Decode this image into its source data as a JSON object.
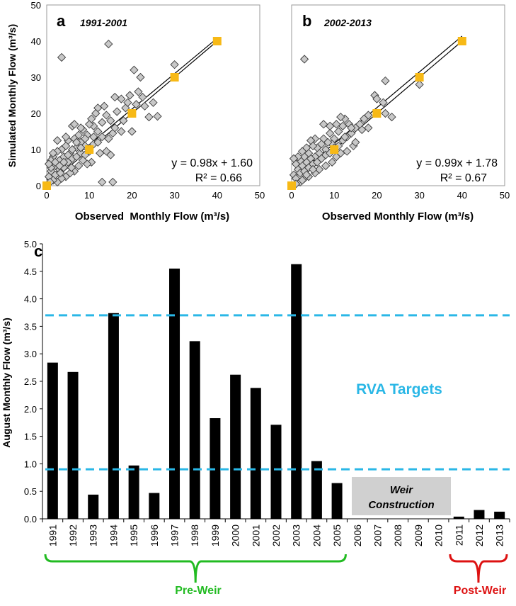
{
  "colors": {
    "diamond_fill": "#c8c8c8",
    "diamond_stroke": "#3a3a3a",
    "square_fill": "#f7b916",
    "bar_fill": "#000000",
    "rva_line": "#2ab7e6",
    "pre_weir": "#22bb22",
    "post_weir": "#dd1111",
    "weir_box": "#d0d0d0"
  },
  "scatter_common": {
    "xlabel": "Observed  Monthly Flow (m³/s)",
    "xlabel_b": "Observed Monthly Flow (m³/s)",
    "ylabel": "Simulated Monthly Flow (m³/s)",
    "ticks": [
      "0",
      "10",
      "20",
      "30",
      "40",
      "50"
    ]
  },
  "chart_data": [
    {
      "type": "scatter",
      "panel": "a",
      "title": "1991-2001",
      "xlim": [
        0,
        50
      ],
      "ylim": [
        0,
        50
      ],
      "equation": "y = 0.98x + 1.60",
      "r2": "R² = 0.66",
      "fit": {
        "slope": 0.98,
        "intercept": 1.6
      },
      "reference_squares": [
        [
          0,
          0
        ],
        [
          10,
          10
        ],
        [
          20,
          20
        ],
        [
          30,
          30
        ],
        [
          40,
          40
        ]
      ],
      "points": [
        [
          3.5,
          35.5
        ],
        [
          14.5,
          39.2
        ],
        [
          20.5,
          32.0
        ],
        [
          30.0,
          33.5
        ],
        [
          26.0,
          19.2
        ],
        [
          22.0,
          30.0
        ],
        [
          21.5,
          26.0
        ],
        [
          19.5,
          25.0
        ],
        [
          17.5,
          24.0
        ],
        [
          16.0,
          24.5
        ],
        [
          16.5,
          20.5
        ],
        [
          18.0,
          18.0
        ],
        [
          17.5,
          15.0
        ],
        [
          15.5,
          14.5
        ],
        [
          15.0,
          18.0
        ],
        [
          14.0,
          19.5
        ],
        [
          13.0,
          17.5
        ],
        [
          12.0,
          21.5
        ],
        [
          11.5,
          20.0
        ],
        [
          11.0,
          16.5
        ],
        [
          10.0,
          17.0
        ],
        [
          9.5,
          14.0
        ],
        [
          9.0,
          13.0
        ],
        [
          8.5,
          15.5
        ],
        [
          8.0,
          12.0
        ],
        [
          7.5,
          14.0
        ],
        [
          7.0,
          10.5
        ],
        [
          6.5,
          13.0
        ],
        [
          6.0,
          16.5
        ],
        [
          5.5,
          9.0
        ],
        [
          5.0,
          12.5
        ],
        [
          4.5,
          11.0
        ],
        [
          4.0,
          8.0
        ],
        [
          3.5,
          10.0
        ],
        [
          3.0,
          7.0
        ],
        [
          2.5,
          9.5
        ],
        [
          2.0,
          5.5
        ],
        [
          1.5,
          8.0
        ],
        [
          1.0,
          4.0
        ],
        [
          0.5,
          2.5
        ],
        [
          1.0,
          7.0
        ],
        [
          2.0,
          3.0
        ],
        [
          3.0,
          4.5
        ],
        [
          4.0,
          5.0
        ],
        [
          5.0,
          6.5
        ],
        [
          6.0,
          7.5
        ],
        [
          7.0,
          8.0
        ],
        [
          8.0,
          9.0
        ],
        [
          9.0,
          8.5
        ],
        [
          10.0,
          9.5
        ],
        [
          11.0,
          11.5
        ],
        [
          12.0,
          12.0
        ],
        [
          13.0,
          13.5
        ],
        [
          12.5,
          9.0
        ],
        [
          14.0,
          9.5
        ],
        [
          15.0,
          8.5
        ],
        [
          10.5,
          6.5
        ],
        [
          9.5,
          6.0
        ],
        [
          8.5,
          7.0
        ],
        [
          7.5,
          5.5
        ],
        [
          6.5,
          4.0
        ],
        [
          5.5,
          3.5
        ],
        [
          4.5,
          2.5
        ],
        [
          3.5,
          2.0
        ],
        [
          2.5,
          1.0
        ],
        [
          1.5,
          1.5
        ],
        [
          13.0,
          1.0
        ],
        [
          15.5,
          1.0
        ],
        [
          20.0,
          15.0
        ],
        [
          23.0,
          22.0
        ],
        [
          24.0,
          19.0
        ],
        [
          18.5,
          21.5
        ],
        [
          19.0,
          23.0
        ],
        [
          16.0,
          16.0
        ],
        [
          14.5,
          13.0
        ],
        [
          12.0,
          15.0
        ],
        [
          11.0,
          13.5
        ],
        [
          10.5,
          18.5
        ],
        [
          9.0,
          11.0
        ],
        [
          8.0,
          10.5
        ],
        [
          7.0,
          12.0
        ],
        [
          6.0,
          10.0
        ],
        [
          5.0,
          8.5
        ],
        [
          4.0,
          6.5
        ],
        [
          3.0,
          5.5
        ],
        [
          2.0,
          6.5
        ],
        [
          1.0,
          5.0
        ],
        [
          0.5,
          6.0
        ],
        [
          1.5,
          9.0
        ],
        [
          2.5,
          12.5
        ],
        [
          4.5,
          13.5
        ],
        [
          6.5,
          17.0
        ],
        [
          8.0,
          16.0
        ],
        [
          13.5,
          22.0
        ],
        [
          22.5,
          24.5
        ],
        [
          25.0,
          23.0
        ],
        [
          21.0,
          22.5
        ],
        [
          0.8,
          1.0
        ],
        [
          3.2,
          3.5
        ],
        [
          5.8,
          5.0
        ]
      ]
    },
    {
      "type": "scatter",
      "panel": "b",
      "title": "2002-2013",
      "xlim": [
        0,
        50
      ],
      "ylim": [
        0,
        50
      ],
      "equation": "y = 0.99x + 1.78",
      "r2": "R² = 0.67",
      "fit": {
        "slope": 0.99,
        "intercept": 1.78
      },
      "reference_squares": [
        [
          0,
          0
        ],
        [
          10,
          10
        ],
        [
          20,
          20
        ],
        [
          30,
          30
        ],
        [
          40,
          40
        ]
      ],
      "points": [
        [
          3.0,
          35.0
        ],
        [
          30.0,
          28.0
        ],
        [
          22.0,
          29.0
        ],
        [
          19.5,
          25.0
        ],
        [
          20.0,
          24.0
        ],
        [
          21.5,
          23.0
        ],
        [
          22.0,
          20.0
        ],
        [
          23.5,
          19.0
        ],
        [
          18.0,
          19.5
        ],
        [
          17.0,
          18.5
        ],
        [
          16.5,
          15.5
        ],
        [
          15.0,
          16.0
        ],
        [
          14.0,
          14.5
        ],
        [
          13.0,
          13.5
        ],
        [
          12.0,
          16.5
        ],
        [
          11.0,
          15.0
        ],
        [
          10.5,
          17.0
        ],
        [
          10.0,
          13.0
        ],
        [
          9.5,
          11.5
        ],
        [
          9.0,
          14.5
        ],
        [
          8.5,
          12.0
        ],
        [
          8.0,
          10.0
        ],
        [
          7.5,
          13.0
        ],
        [
          7.0,
          11.5
        ],
        [
          6.5,
          9.0
        ],
        [
          6.0,
          10.5
        ],
        [
          5.5,
          8.0
        ],
        [
          5.0,
          11.0
        ],
        [
          4.5,
          7.5
        ],
        [
          4.0,
          9.0
        ],
        [
          3.5,
          6.5
        ],
        [
          3.0,
          8.0
        ],
        [
          2.5,
          5.5
        ],
        [
          2.0,
          7.0
        ],
        [
          1.5,
          4.5
        ],
        [
          1.0,
          6.0
        ],
        [
          0.5,
          3.0
        ],
        [
          1.0,
          2.0
        ],
        [
          2.0,
          3.5
        ],
        [
          3.0,
          4.0
        ],
        [
          4.0,
          5.0
        ],
        [
          5.0,
          6.0
        ],
        [
          6.0,
          6.5
        ],
        [
          7.0,
          7.5
        ],
        [
          8.0,
          8.5
        ],
        [
          9.0,
          9.0
        ],
        [
          10.0,
          10.5
        ],
        [
          11.0,
          11.0
        ],
        [
          12.0,
          12.5
        ],
        [
          13.0,
          9.5
        ],
        [
          14.5,
          11.0
        ],
        [
          15.0,
          12.0
        ],
        [
          13.5,
          17.0
        ],
        [
          12.5,
          18.5
        ],
        [
          11.5,
          19.0
        ],
        [
          9.0,
          16.5
        ],
        [
          7.5,
          17.0
        ],
        [
          5.5,
          13.0
        ],
        [
          4.5,
          12.5
        ],
        [
          3.5,
          10.5
        ],
        [
          2.5,
          9.5
        ],
        [
          1.5,
          8.0
        ],
        [
          0.5,
          7.5
        ],
        [
          2.0,
          1.0
        ],
        [
          3.0,
          2.0
        ],
        [
          4.0,
          2.5
        ],
        [
          5.5,
          3.5
        ],
        [
          6.5,
          4.5
        ],
        [
          8.0,
          5.5
        ],
        [
          9.5,
          6.5
        ],
        [
          10.5,
          8.0
        ],
        [
          11.5,
          9.0
        ],
        [
          12.5,
          13.5
        ],
        [
          14.0,
          16.0
        ],
        [
          16.0,
          17.0
        ],
        [
          18.0,
          16.0
        ],
        [
          1.0,
          0.5
        ],
        [
          2.5,
          1.5
        ],
        [
          3.5,
          3.0
        ],
        [
          5.0,
          4.5
        ]
      ]
    },
    {
      "type": "bar",
      "panel": "c",
      "ylabel": "August Monthly Flow (m³/s)",
      "ylim": [
        0,
        5
      ],
      "yticks": [
        "0.0",
        "0.5",
        "1.0",
        "1.5",
        "2.0",
        "2.5",
        "3.0",
        "3.5",
        "4.0",
        "4.5",
        "5.0"
      ],
      "categories": [
        "1991",
        "1992",
        "1993",
        "1994",
        "1995",
        "1996",
        "1997",
        "1998",
        "1999",
        "2000",
        "2001",
        "2002",
        "2003",
        "2004",
        "2005",
        "2006",
        "2007",
        "2008",
        "2009",
        "2010",
        "2011",
        "2012",
        "2013"
      ],
      "values": [
        2.84,
        2.67,
        0.44,
        3.74,
        0.97,
        0.47,
        4.55,
        3.23,
        1.83,
        2.62,
        2.38,
        1.71,
        4.63,
        1.05,
        0.65,
        null,
        null,
        null,
        null,
        null,
        0.04,
        0.16,
        0.13
      ],
      "rva_targets": [
        3.7,
        0.9
      ],
      "rva_label": "RVA Targets",
      "weir_label_line1": "Weir",
      "weir_label_line2": "Construction",
      "pre_weir_label": "Pre-Weir",
      "post_weir_label": "Post-Weir"
    }
  ]
}
